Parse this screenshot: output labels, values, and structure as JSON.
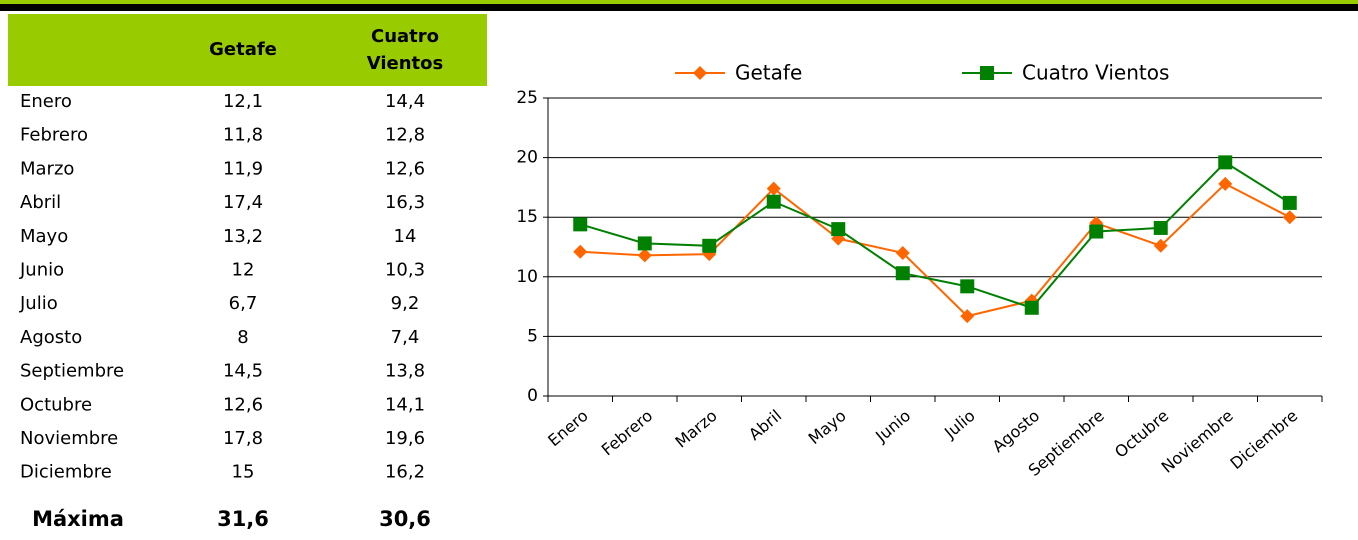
{
  "table": {
    "header": [
      "Getafe",
      "Cuatro Vientos"
    ],
    "rows": [
      [
        "Enero",
        "12,1",
        "14,4"
      ],
      [
        "Febrero",
        "11,8",
        "12,8"
      ],
      [
        "Marzo",
        "11,9",
        "12,6"
      ],
      [
        "Abril",
        "17,4",
        "16,3"
      ],
      [
        "Mayo",
        "13,2",
        "14"
      ],
      [
        "Junio",
        "12",
        "10,3"
      ],
      [
        "Julio",
        "6,7",
        "9,2"
      ],
      [
        "Agosto",
        "8",
        "7,4"
      ],
      [
        "Septiembre",
        "14,5",
        "13,8"
      ],
      [
        "Octubre",
        "12,6",
        "14,1"
      ],
      [
        "Noviembre",
        "17,8",
        "19,6"
      ],
      [
        "Diciembre",
        "15",
        "16,2"
      ]
    ],
    "footer": [
      "Máxima",
      "31,6",
      "30,6"
    ]
  },
  "chart_data": {
    "type": "line",
    "categories": [
      "Enero",
      "Febrero",
      "Marzo",
      "Abril",
      "Mayo",
      "Junio",
      "Julio",
      "Agosto",
      "Septiembre",
      "Octubre",
      "Noviembre",
      "Diciembre"
    ],
    "series": [
      {
        "name": "Getafe",
        "color": "#ff6600",
        "marker": "diamond",
        "values": [
          12.1,
          11.8,
          11.9,
          17.4,
          13.2,
          12,
          6.7,
          8,
          14.5,
          12.6,
          17.8,
          15
        ]
      },
      {
        "name": "Cuatro Vientos",
        "color": "#008000",
        "marker": "square",
        "values": [
          14.4,
          12.8,
          12.6,
          16.3,
          14,
          10.3,
          9.2,
          7.4,
          13.8,
          14.1,
          19.6,
          16.2
        ]
      }
    ],
    "ylim": [
      0,
      25
    ],
    "yticks": [
      0,
      5,
      10,
      15,
      20,
      25
    ],
    "grid": true,
    "legend": "top"
  }
}
